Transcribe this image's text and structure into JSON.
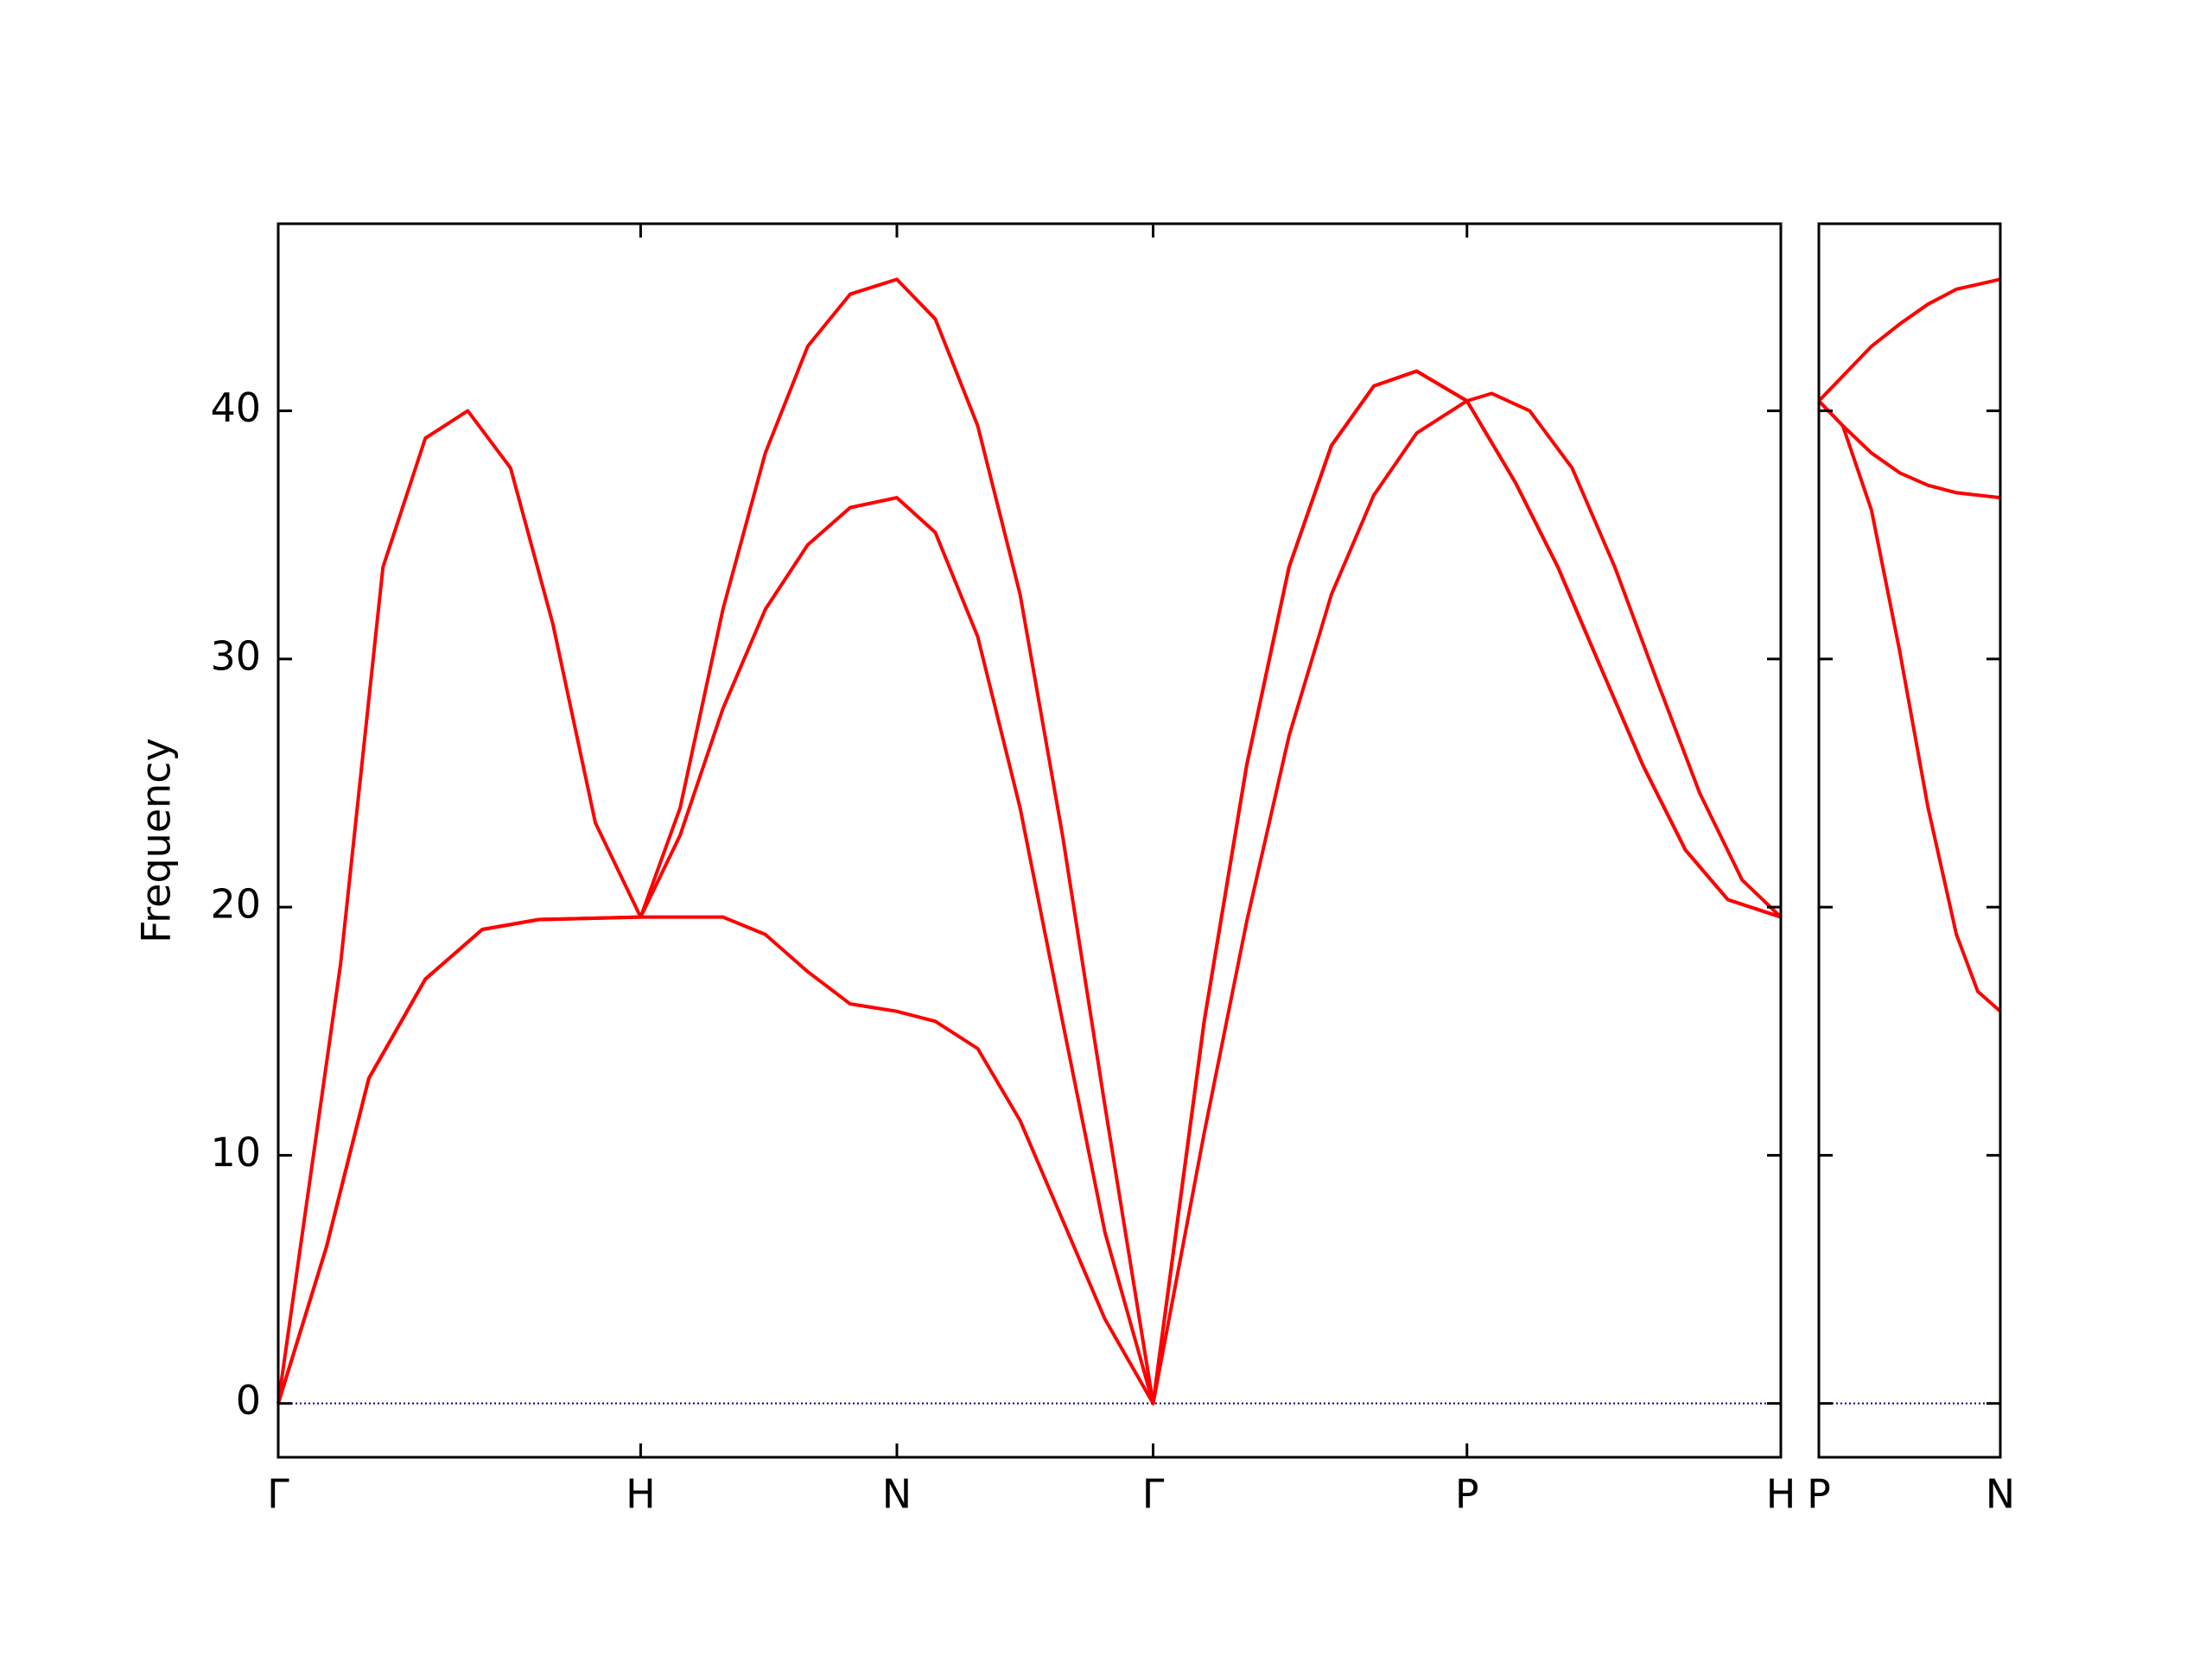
{
  "chart_data": [
    {
      "type": "line",
      "ylabel": "Frequency",
      "xlim": [
        0,
        4.146
      ],
      "ylim": [
        -2.17,
        47.54
      ],
      "xticks": [
        {
          "value": 0,
          "label": "Γ"
        },
        {
          "value": 1,
          "label": "H"
        },
        {
          "value": 1.707,
          "label": "N"
        },
        {
          "value": 2.414,
          "label": "Γ"
        },
        {
          "value": 3.28,
          "label": "P"
        },
        {
          "value": 4.146,
          "label": "H"
        }
      ],
      "yticks": [
        0,
        10,
        20,
        30,
        40
      ],
      "hline": {
        "value": 0,
        "color": "#00008b"
      },
      "series": [
        {
          "color": "#ff0000",
          "x": [
            0,
            0.172,
            0.289,
            0.406,
            0.523,
            0.641,
            0.758,
            0.875,
            1,
            1.109,
            1.227,
            1.344,
            1.461,
            1.578,
            1.707,
            1.813,
            1.93,
            2.047,
            2.164,
            2.281,
            2.414,
            2.555,
            2.672,
            2.789,
            2.906,
            3.023,
            3.141,
            3.28,
            3.414,
            3.531,
            3.648,
            3.766,
            3.883,
            4,
            4.146
          ],
          "values": [
            0,
            17.7,
            33.7,
            38.9,
            40,
            37.7,
            31.4,
            23.4,
            19.6,
            24,
            32,
            38.3,
            42.6,
            44.7,
            45.3,
            43.7,
            39.4,
            32.6,
            22.9,
            12,
            0,
            15.4,
            25.7,
            33.7,
            38.6,
            41,
            41.6,
            40.4,
            37.1,
            33.7,
            29.7,
            25.7,
            22.3,
            20.3,
            19.6
          ]
        },
        {
          "color": "#ff0000",
          "x": [
            0,
            0.133,
            0.25,
            0.406,
            0.563,
            0.719,
            1,
            1.109,
            1.227,
            1.344,
            1.461,
            1.578,
            1.707,
            1.813,
            1.93,
            2.047,
            2.164,
            2.281,
            2.414,
            2.555,
            2.672,
            2.789,
            2.906,
            3.023,
            3.141,
            3.28,
            3.348,
            3.453,
            3.57,
            3.688,
            3.805,
            3.922,
            4.039,
            4.146
          ],
          "values": [
            0,
            6.3,
            13.1,
            17.1,
            19.1,
            19.5,
            19.6,
            22.9,
            28,
            32,
            34.6,
            36.1,
            36.5,
            35.1,
            30.9,
            24,
            15.4,
            6.9,
            0,
            10.9,
            19.4,
            26.9,
            32.6,
            36.6,
            39.1,
            40.4,
            40.7,
            40,
            37.7,
            33.7,
            29.1,
            24.6,
            21.1,
            19.6
          ]
        },
        {
          "color": "#ff0000",
          "x": [
            0,
            0.133,
            0.25,
            0.406,
            0.563,
            0.719,
            1,
            1.109,
            1.227,
            1.344,
            1.461,
            1.578,
            1.707,
            1.813,
            1.93,
            2.047,
            2.164,
            2.281,
            2.414,
            2.555,
            2.672,
            2.789,
            2.906,
            3.023,
            3.141,
            3.28,
            3.414,
            3.531,
            3.648,
            3.766,
            3.883,
            4,
            4.146
          ],
          "values": [
            0,
            6.3,
            13.1,
            17.1,
            19.1,
            19.5,
            19.6,
            19.6,
            19.6,
            18.9,
            17.4,
            16.1,
            15.8,
            15.4,
            14.3,
            11.4,
            7.4,
            3.4,
            0,
            15.4,
            25.7,
            33.7,
            38.6,
            41,
            41.6,
            40.4,
            37.1,
            33.7,
            29.7,
            25.7,
            22.3,
            20.3,
            19.6
          ]
        }
      ]
    },
    {
      "type": "line",
      "xlim": [
        0,
        0.5
      ],
      "ylim": [
        -2.17,
        47.54
      ],
      "xticks": [
        {
          "value": 0,
          "label": "P"
        },
        {
          "value": 0.5,
          "label": "N"
        }
      ],
      "yticks": [
        0,
        10,
        20,
        30,
        40
      ],
      "hline": {
        "value": 0,
        "color": "#00008b"
      },
      "series": [
        {
          "color": "#ff0000",
          "x": [
            0,
            0.066,
            0.145,
            0.223,
            0.301,
            0.379,
            0.5
          ],
          "values": [
            40.4,
            41.4,
            42.6,
            43.5,
            44.3,
            44.9,
            45.3
          ]
        },
        {
          "color": "#ff0000",
          "x": [
            0,
            0.066,
            0.145,
            0.223,
            0.301,
            0.379,
            0.5
          ],
          "values": [
            40.4,
            39.4,
            38.3,
            37.5,
            37,
            36.7,
            36.5
          ]
        },
        {
          "color": "#ff0000",
          "x": [
            0,
            0.066,
            0.145,
            0.223,
            0.301,
            0.379,
            0.438,
            0.5
          ],
          "values": [
            40.4,
            39.4,
            36,
            30.3,
            24,
            18.9,
            16.6,
            15.8
          ]
        }
      ]
    }
  ]
}
